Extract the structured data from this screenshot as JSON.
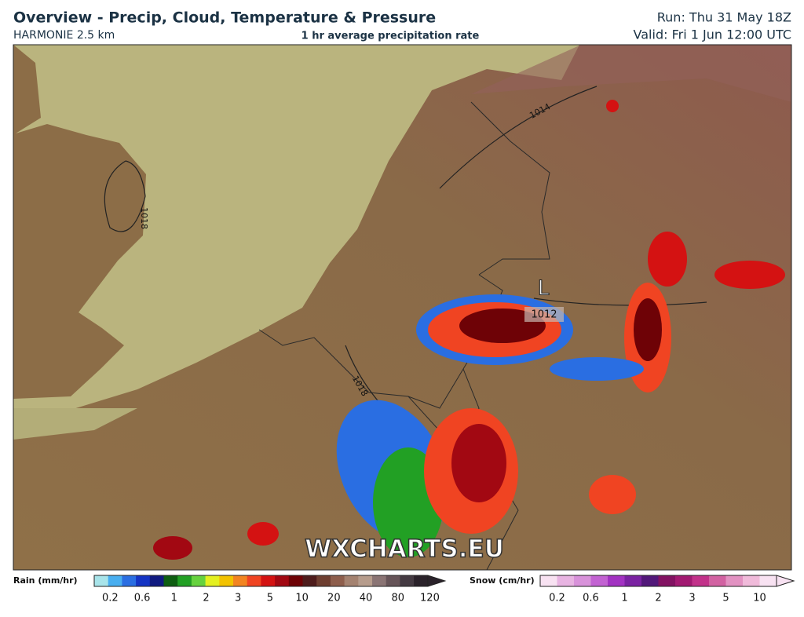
{
  "header": {
    "title": "Overview - Precip, Cloud, Temperature & Pressure",
    "model": "HARMONIE 2.5 km",
    "subtitle": "1 hr average precipitation rate",
    "run": "Run: Thu 31 May 18Z",
    "valid": "Valid: Fri 1 Jun 12:00 UTC"
  },
  "map": {
    "isobars": [
      {
        "label": "1014"
      },
      {
        "label": "1018"
      },
      {
        "label": "1018"
      }
    ],
    "low": {
      "symbol": "L",
      "pressure": "1012"
    },
    "watermark": "WXCHARTS.EU"
  },
  "legend": {
    "rain": {
      "title": "Rain (mm/hr)",
      "ticks": [
        "0.2",
        "0.6",
        "1",
        "2",
        "3",
        "5",
        "10",
        "20",
        "40",
        "80",
        "120"
      ],
      "colors": [
        "#a8e4ea",
        "#48aef0",
        "#2a6ee2",
        "#1434c4",
        "#101a80",
        "#0e5e12",
        "#22a024",
        "#66d23e",
        "#e4f020",
        "#f2c200",
        "#f28420",
        "#f04422",
        "#d41212",
        "#a20812",
        "#6e0206",
        "#4e1c1c",
        "#6e3e30",
        "#8e5e4c",
        "#a48270",
        "#b69c8c",
        "#8a7474",
        "#665458",
        "#443a42",
        "#2a222a"
      ]
    },
    "snow": {
      "title": "Snow (cm/hr)",
      "ticks": [
        "0.2",
        "0.6",
        "1",
        "2",
        "3",
        "5",
        "10"
      ],
      "colors": [
        "#f8e2f2",
        "#e8b4e2",
        "#d892da",
        "#c262d2",
        "#a232c2",
        "#7a22a2",
        "#52187a",
        "#821262",
        "#a21a72",
        "#c2328a",
        "#d262a2",
        "#e292c2",
        "#f0bada",
        "#f8e2f2"
      ]
    }
  }
}
